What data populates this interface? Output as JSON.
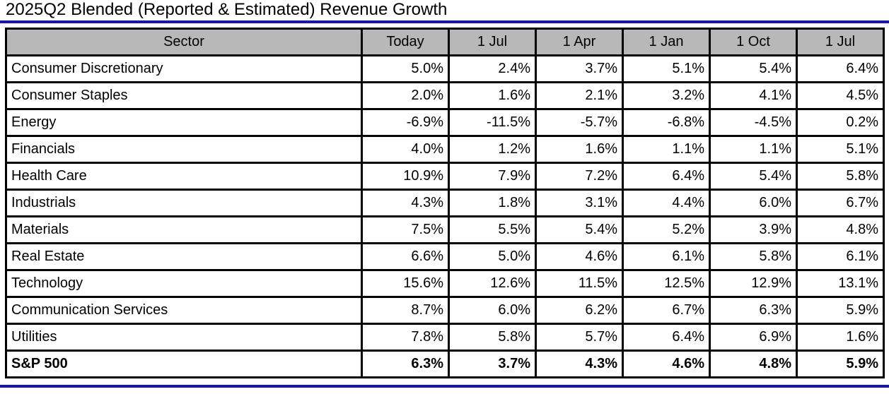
{
  "title": "2025Q2 Blended (Reported & Estimated) Revenue Growth",
  "colors": {
    "accent_blue": "#1212d4",
    "header_bg": "#b8b8b8",
    "border": "#000000",
    "background": "#ffffff"
  },
  "table": {
    "columns": [
      "Sector",
      "Today",
      "1 Jul",
      "1 Apr",
      "1 Jan",
      "1 Oct",
      "1 Jul"
    ],
    "rows": [
      {
        "sector": "Consumer Discretionary",
        "values": [
          "5.0%",
          "2.4%",
          "3.7%",
          "5.1%",
          "5.4%",
          "6.4%"
        ]
      },
      {
        "sector": "Consumer Staples",
        "values": [
          "2.0%",
          "1.6%",
          "2.1%",
          "3.2%",
          "4.1%",
          "4.5%"
        ]
      },
      {
        "sector": "Energy",
        "values": [
          "-6.9%",
          "-11.5%",
          "-5.7%",
          "-6.8%",
          "-4.5%",
          "0.2%"
        ]
      },
      {
        "sector": "Financials",
        "values": [
          "4.0%",
          "1.2%",
          "1.6%",
          "1.1%",
          "1.1%",
          "5.1%"
        ]
      },
      {
        "sector": "Health Care",
        "values": [
          "10.9%",
          "7.9%",
          "7.2%",
          "6.4%",
          "5.4%",
          "5.8%"
        ]
      },
      {
        "sector": "Industrials",
        "values": [
          "4.3%",
          "1.8%",
          "3.1%",
          "4.4%",
          "6.0%",
          "6.7%"
        ]
      },
      {
        "sector": "Materials",
        "values": [
          "7.5%",
          "5.5%",
          "5.4%",
          "5.2%",
          "3.9%",
          "4.8%"
        ]
      },
      {
        "sector": "Real Estate",
        "values": [
          "6.6%",
          "5.0%",
          "4.6%",
          "6.1%",
          "5.8%",
          "6.1%"
        ]
      },
      {
        "sector": "Technology",
        "values": [
          "15.6%",
          "12.6%",
          "11.5%",
          "12.5%",
          "12.9%",
          "13.1%"
        ]
      },
      {
        "sector": "Communication Services",
        "values": [
          "8.7%",
          "6.0%",
          "6.2%",
          "6.7%",
          "6.3%",
          "5.9%"
        ]
      },
      {
        "sector": "Utilities",
        "values": [
          "7.8%",
          "5.8%",
          "5.7%",
          "6.4%",
          "6.9%",
          "1.6%"
        ]
      },
      {
        "sector": "S&P 500",
        "values": [
          "6.3%",
          "3.7%",
          "4.3%",
          "4.6%",
          "4.8%",
          "5.9%"
        ],
        "bold": true
      }
    ]
  },
  "chart_data": {
    "type": "table",
    "title": "2025Q2 Blended (Reported & Estimated) Revenue Growth",
    "unit": "percent revenue growth",
    "columns": [
      "Sector",
      "Today",
      "1 Jul",
      "1 Apr",
      "1 Jan",
      "1 Oct",
      "1 Jul"
    ],
    "rows": [
      {
        "sector": "Consumer Discretionary",
        "values": [
          5.0,
          2.4,
          3.7,
          5.1,
          5.4,
          6.4
        ]
      },
      {
        "sector": "Consumer Staples",
        "values": [
          2.0,
          1.6,
          2.1,
          3.2,
          4.1,
          4.5
        ]
      },
      {
        "sector": "Energy",
        "values": [
          -6.9,
          -11.5,
          -5.7,
          -6.8,
          -4.5,
          0.2
        ]
      },
      {
        "sector": "Financials",
        "values": [
          4.0,
          1.2,
          1.6,
          1.1,
          1.1,
          5.1
        ]
      },
      {
        "sector": "Health Care",
        "values": [
          10.9,
          7.9,
          7.2,
          6.4,
          5.4,
          5.8
        ]
      },
      {
        "sector": "Industrials",
        "values": [
          4.3,
          1.8,
          3.1,
          4.4,
          6.0,
          6.7
        ]
      },
      {
        "sector": "Materials",
        "values": [
          7.5,
          5.5,
          5.4,
          5.2,
          3.9,
          4.8
        ]
      },
      {
        "sector": "Real Estate",
        "values": [
          6.6,
          5.0,
          4.6,
          6.1,
          5.8,
          6.1
        ]
      },
      {
        "sector": "Technology",
        "values": [
          15.6,
          12.6,
          11.5,
          12.5,
          12.9,
          13.1
        ]
      },
      {
        "sector": "Communication Services",
        "values": [
          8.7,
          6.0,
          6.2,
          6.7,
          6.3,
          5.9
        ]
      },
      {
        "sector": "Utilities",
        "values": [
          7.8,
          5.8,
          5.7,
          6.4,
          6.9,
          1.6
        ]
      },
      {
        "sector": "S&P 500",
        "values": [
          6.3,
          3.7,
          4.3,
          4.6,
          4.8,
          5.9
        ]
      }
    ]
  }
}
